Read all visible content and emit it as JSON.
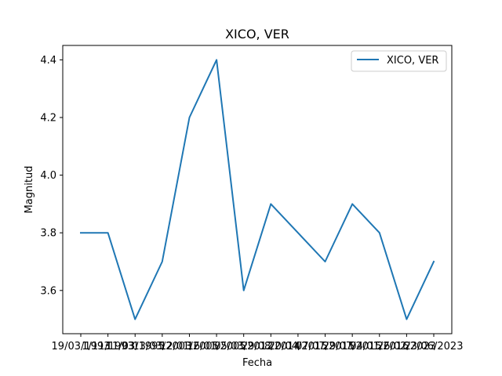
{
  "chart_data": {
    "type": "line",
    "title": "XICO, VER",
    "xlabel": "Fecha",
    "ylabel": "Magnitud",
    "categories": [
      "19/03/1993",
      "1/11/1993",
      "11/03/1995",
      "13/03/2003",
      "12/01/2005",
      "16/01/2005",
      "05/03/2012",
      "29/08/2014",
      "20/04/2015",
      "07/07/2015",
      "29/07/2015",
      "04/01/2016",
      "26/02/2023",
      "23/06/2023"
    ],
    "series": [
      {
        "name": "XICO, VER",
        "color": "#1f77b4",
        "values": [
          3.8,
          3.8,
          3.5,
          3.7,
          4.2,
          4.4,
          3.6,
          3.9,
          3.8,
          3.7,
          3.9,
          3.8,
          3.5,
          3.7
        ]
      }
    ],
    "ylim": [
      3.45,
      4.45
    ],
    "yticks": [
      3.6,
      3.8,
      4.0,
      4.2,
      4.4
    ],
    "ytick_labels": [
      "3.6",
      "3.8",
      "4.0",
      "4.2",
      "4.4"
    ],
    "grid": false,
    "legend": "top-right"
  }
}
